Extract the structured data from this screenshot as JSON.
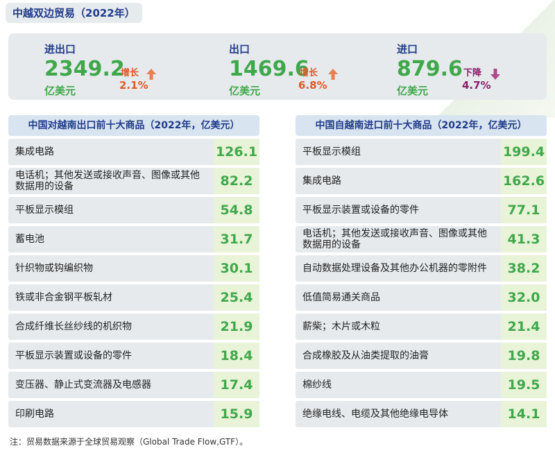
{
  "title": "中越双边贸易（2022年）",
  "colors": {
    "accent_blue": "#1f3b8a",
    "value_green": "#3fa84a",
    "increase_orange": "#e05a2a",
    "decrease_purple": "#8a1e6a",
    "panel_gray": "#e6eaed",
    "value_bg": "#e8f3d8"
  },
  "summary": {
    "total": {
      "label": "进出口",
      "value": "2349.2",
      "unit": "亿美元",
      "direction": "增长",
      "pct": "2.1%",
      "arrow": "up-arrow-icon"
    },
    "export": {
      "label": "出口",
      "value": "1469.6",
      "unit": "亿美元",
      "direction": "增长",
      "pct": "6.8%",
      "arrow": "up-arrow-icon"
    },
    "import": {
      "label": "进口",
      "value": "879.6",
      "unit": "亿美元",
      "direction": "下降",
      "pct": "4.7%",
      "arrow": "down-arrow-icon"
    }
  },
  "export_table": {
    "header": "中国对越南出口前十大商品（2022年，亿美元）",
    "rows": [
      {
        "name": "集成电路",
        "value": "126.1"
      },
      {
        "name": "电话机；其他发送或接收声音、图像或其他数据用的设备",
        "value": "82.2"
      },
      {
        "name": "平板显示模组",
        "value": "54.8"
      },
      {
        "name": "蓄电池",
        "value": "31.7"
      },
      {
        "name": "针织物或钩编织物",
        "value": "30.1"
      },
      {
        "name": "铁或非合金钢平板轧材",
        "value": "25.4"
      },
      {
        "name": "合成纤维长丝纱线的机织物",
        "value": "21.9"
      },
      {
        "name": "平板显示装置或设备的零件",
        "value": "18.4"
      },
      {
        "name": "变压器、静止式变流器及电感器",
        "value": "17.4"
      },
      {
        "name": "印刷电路",
        "value": "15.9"
      }
    ]
  },
  "import_table": {
    "header": "中国自越南进口前十大商品（2022年，亿美元）",
    "rows": [
      {
        "name": "平板显示模组",
        "value": "199.4"
      },
      {
        "name": "集成电路",
        "value": "162.6"
      },
      {
        "name": "平板显示装置或设备的零件",
        "value": "77.1"
      },
      {
        "name": "电话机；其他发送或接收声音、图像或其他数据用的设备",
        "value": "41.3"
      },
      {
        "name": "自动数据处理设备及其他办公机器的零附件",
        "value": "38.2"
      },
      {
        "name": "低值简易通关商品",
        "value": "32.0"
      },
      {
        "name": "薪柴；木片或木粒",
        "value": "21.4"
      },
      {
        "name": "合成橡胶及从油类提取的油膏",
        "value": "19.8"
      },
      {
        "name": "棉纱线",
        "value": "19.5"
      },
      {
        "name": "绝缘电线、电缆及其他绝缘电导体",
        "value": "14.1"
      }
    ]
  },
  "footnote": "注：贸易数据来源于全球贸易观察（Global Trade Flow,GTF）。",
  "chart_data": [
    {
      "type": "table",
      "title": "中国对越南出口前十大商品（2022年，亿美元）",
      "categories": [
        "集成电路",
        "电话机；其他发送或接收声音、图像或其他数据用的设备",
        "平板显示模组",
        "蓄电池",
        "针织物或钩编织物",
        "铁或非合金钢平板轧材",
        "合成纤维长丝纱线的机织物",
        "平板显示装置或设备的零件",
        "变压器、静止式变流器及电感器",
        "印刷电路"
      ],
      "values": [
        126.1,
        82.2,
        54.8,
        31.7,
        30.1,
        25.4,
        21.9,
        18.4,
        17.4,
        15.9
      ]
    },
    {
      "type": "table",
      "title": "中国自越南进口前十大商品（2022年，亿美元）",
      "categories": [
        "平板显示模组",
        "集成电路",
        "平板显示装置或设备的零件",
        "电话机；其他发送或接收声音、图像或其他数据用的设备",
        "自动数据处理设备及其他办公机器的零附件",
        "低值简易通关商品",
        "薪柴；木片或木粒",
        "合成橡胶及从油类提取的油膏",
        "棉纱线",
        "绝缘电线、电缆及其他绝缘电导体"
      ],
      "values": [
        199.4,
        162.6,
        77.1,
        41.3,
        38.2,
        32.0,
        21.4,
        19.8,
        19.5,
        14.1
      ]
    }
  ]
}
